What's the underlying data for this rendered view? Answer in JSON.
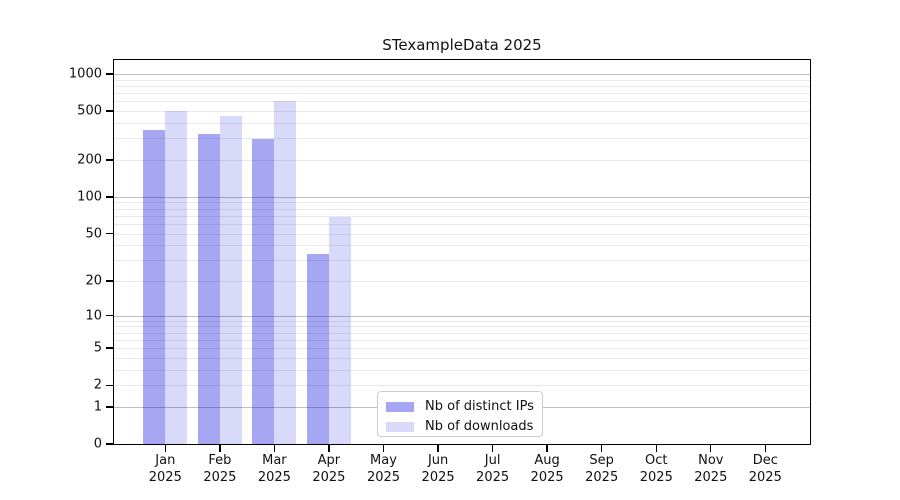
{
  "chart_data": {
    "type": "bar",
    "title": "STexampleData 2025",
    "x_categories": [
      "Jan",
      "Feb",
      "Mar",
      "Apr",
      "May",
      "Jun",
      "Jul",
      "Aug",
      "Sep",
      "Oct",
      "Nov",
      "Dec"
    ],
    "x_year": "2025",
    "series": [
      {
        "name": "Nb of distinct IPs",
        "color": "rgba(0,0,221,0.35)",
        "color_hex_on_white": "#a6a6f2",
        "values": [
          350,
          327,
          295,
          34,
          null,
          null,
          null,
          null,
          null,
          null,
          null,
          null
        ]
      },
      {
        "name": "Nb of downloads",
        "color": "rgba(0,0,221,0.15)",
        "color_hex_on_white": "#d9d9f9",
        "values": [
          505,
          455,
          610,
          69,
          null,
          null,
          null,
          null,
          null,
          null,
          null,
          null
        ]
      }
    ],
    "y_axis": {
      "scale": "log10(1+y)",
      "min": 0,
      "max": 1300,
      "ticks": [
        1000,
        500,
        200,
        100,
        50,
        20,
        10,
        5,
        2,
        1,
        0
      ],
      "major_gridlines": [
        1,
        10,
        100,
        1000
      ],
      "minor_gridlines": [
        2,
        3,
        4,
        5,
        6,
        7,
        8,
        9,
        20,
        30,
        40,
        50,
        60,
        70,
        80,
        90,
        200,
        300,
        400,
        500,
        600,
        700,
        800,
        900
      ]
    },
    "grid": "horizontal-only",
    "legend_position": "lower-center"
  },
  "colors": {
    "grid_major": "#bfbfbf",
    "grid_minor": "#e9e9e9",
    "axis": "#000000",
    "text": "#111111",
    "legend_border": "#cccccc",
    "background": "#ffffff"
  }
}
